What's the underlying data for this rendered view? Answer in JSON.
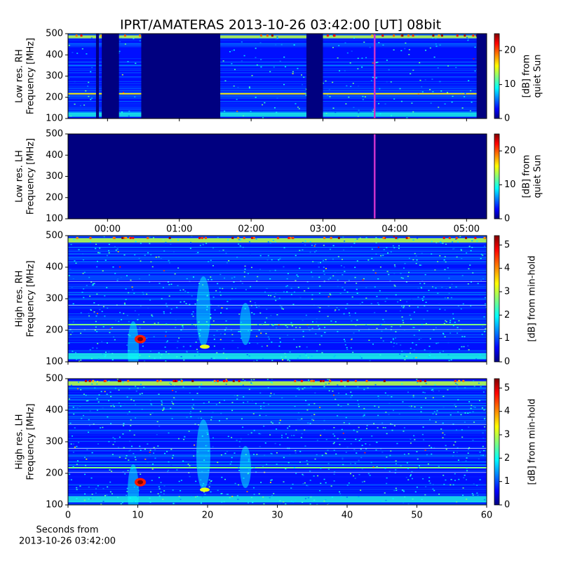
{
  "title": "IPRT/AMATERAS 2013-10-26 03:42:00 [UT]   08bit",
  "chart_data": [
    {
      "type": "spectrogram",
      "ylabel": [
        "Low res. RH",
        "Frequency [MHz]"
      ],
      "xlim": [
        -0.55,
        5.28
      ],
      "xticks": [
        0,
        1,
        2,
        3,
        4,
        5
      ],
      "xticklabels": false,
      "ylim": [
        100,
        500
      ],
      "yticks": [
        100,
        200,
        300,
        400,
        500
      ],
      "gaps": [
        [
          -0.16,
          -0.12
        ],
        [
          -0.08,
          0.16
        ],
        [
          0.47,
          1.57
        ],
        [
          2.77,
          3.0
        ],
        [
          5.14,
          5.28
        ]
      ],
      "marker": 3.72,
      "marker_color": "#cc33cc",
      "colorbar": {
        "label": [
          "[dB] from",
          "quiet Sun"
        ],
        "lim": [
          0,
          25
        ],
        "ticks": [
          0,
          10,
          20
        ]
      }
    },
    {
      "type": "spectrogram",
      "ylabel": [
        "Low res. LH",
        "Frequency [MHz]"
      ],
      "xlim": [
        -0.55,
        5.28
      ],
      "xticks": [
        {
          "value": 0,
          "label": "00:00"
        },
        {
          "value": 1,
          "label": "01:00"
        },
        {
          "value": 2,
          "label": "02:00"
        },
        {
          "value": 3,
          "label": "03:00"
        },
        {
          "value": 4,
          "label": "04:00"
        },
        {
          "value": 5,
          "label": "05:00"
        }
      ],
      "xticklabels": true,
      "ylim": [
        100,
        500
      ],
      "yticks": [
        100,
        200,
        300,
        400,
        500
      ],
      "gaps": [
        [
          -0.55,
          5.28
        ]
      ],
      "marker": 3.72,
      "marker_color": "#cc33cc",
      "colorbar": {
        "label": [
          "[dB] from",
          "quiet Sun"
        ],
        "lim": [
          0,
          25
        ],
        "ticks": [
          0,
          10,
          20
        ]
      }
    },
    {
      "type": "spectrogram",
      "ylabel": [
        "High res. RH",
        "Frequency [MHz]"
      ],
      "xlim": [
        0,
        60
      ],
      "xticks": [
        0,
        10,
        20,
        30,
        40,
        50,
        60
      ],
      "xticklabels": false,
      "ylim": [
        100,
        500
      ],
      "yticks": [
        100,
        200,
        300,
        400,
        500
      ],
      "colorbar": {
        "label": [
          "[dB] from min-hold"
        ],
        "lim": [
          0,
          5.4
        ],
        "ticks": [
          0,
          1,
          2,
          3,
          4,
          5
        ]
      }
    },
    {
      "type": "spectrogram",
      "ylabel": [
        "High res. LH",
        "Frequency [MHz]"
      ],
      "xlim": [
        0,
        60
      ],
      "xticks": [
        0,
        10,
        20,
        30,
        40,
        50,
        60
      ],
      "xticklabels": true,
      "xlabel": [
        "Seconds from",
        "2013-10-26 03:42:00"
      ],
      "ylim": [
        100,
        500
      ],
      "yticks": [
        100,
        200,
        300,
        400,
        500
      ],
      "colorbar": {
        "label": [
          "[dB] from min-hold"
        ],
        "lim": [
          0,
          5.4
        ],
        "ticks": [
          0,
          1,
          2,
          3,
          4,
          5
        ]
      }
    }
  ]
}
